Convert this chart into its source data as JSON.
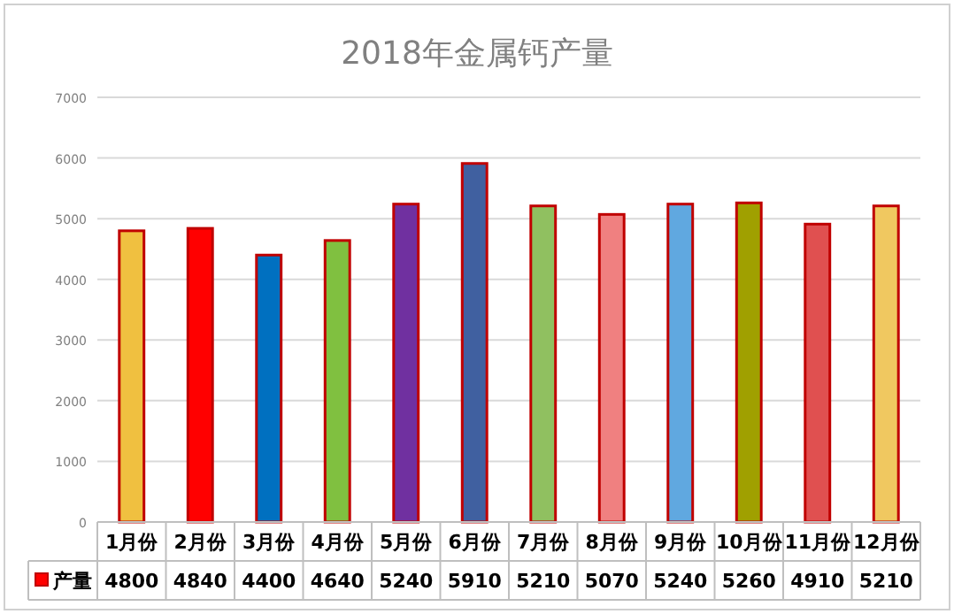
{
  "chart_data": {
    "type": "bar",
    "title": "2018年金属钙产量",
    "categories": [
      "1月份",
      "2月份",
      "3月份",
      "4月份",
      "5月份",
      "6月份",
      "7月份",
      "8月份",
      "9月份",
      "10月份",
      "11月份",
      "12月份"
    ],
    "series": [
      {
        "name": "产量",
        "color": "#c00000",
        "colors": [
          "#f0c040",
          "#ff0000",
          "#0070c0",
          "#80c040",
          "#7030a0",
          "#4060a0",
          "#90c060",
          "#f08080",
          "#60a8e0",
          "#a0a000",
          "#e05050",
          "#f0c860"
        ],
        "values": [
          4800,
          4840,
          4400,
          4640,
          5240,
          5910,
          5210,
          5070,
          5240,
          5260,
          4910,
          5210
        ]
      }
    ],
    "ylim": [
      0,
      7000
    ],
    "yticks": [
      0,
      1000,
      2000,
      3000,
      4000,
      5000,
      6000,
      7000
    ],
    "grid": "y",
    "data_labels": true,
    "legend": "bottom"
  }
}
